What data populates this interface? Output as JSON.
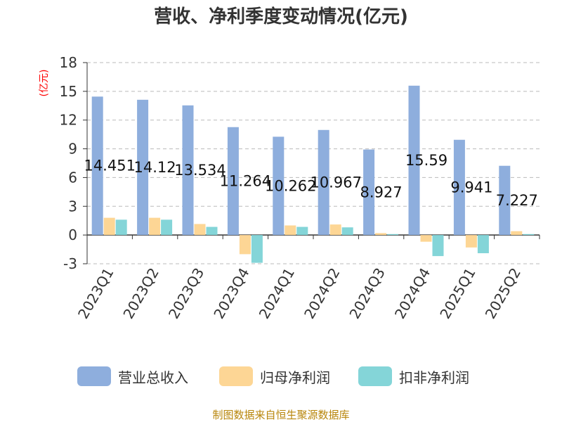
{
  "title": "营收、净利季度变动情况(亿元)",
  "unit_label": "(亿元)",
  "source": "制图数据来自恒生聚源数据库",
  "colors": {
    "revenue": "#8eaedd",
    "net_profit": "#fdd695",
    "deducted_profit": "#84d5d8",
    "unit_label": "#ff0000",
    "source": "#b8860b",
    "grid": "#bbbbbb",
    "axis": "#333333"
  },
  "chart_data": {
    "type": "bar",
    "title": "营收、净利季度变动情况(亿元)",
    "ylabel": "(亿元)",
    "ylim": [
      -3,
      18
    ],
    "yticks": [
      -3,
      0,
      3,
      6,
      9,
      12,
      15,
      18
    ],
    "grid": true,
    "legend_position": "bottom",
    "categories": [
      "2023Q1",
      "2023Q2",
      "2023Q3",
      "2023Q4",
      "2024Q1",
      "2024Q2",
      "2024Q3",
      "2024Q4",
      "2025Q1",
      "2025Q2"
    ],
    "series": [
      {
        "name": "营业总收入",
        "values": [
          14.451,
          14.12,
          13.534,
          11.264,
          10.262,
          10.967,
          8.927,
          15.59,
          9.941,
          7.227
        ]
      },
      {
        "name": "归母净利润",
        "values": [
          1.8,
          1.8,
          1.15,
          -2.0,
          1.0,
          1.1,
          0.2,
          -0.7,
          -1.3,
          0.4
        ]
      },
      {
        "name": "扣非净利润",
        "values": [
          1.6,
          1.6,
          0.85,
          -2.9,
          0.85,
          0.8,
          0.1,
          -2.2,
          -1.9,
          0.1
        ]
      }
    ],
    "data_labels": [
      "14.451",
      "14.12",
      "13.534",
      "11.264",
      "10.262",
      "10.967",
      "8.927",
      "15.59",
      "9.941",
      "7.227"
    ]
  }
}
